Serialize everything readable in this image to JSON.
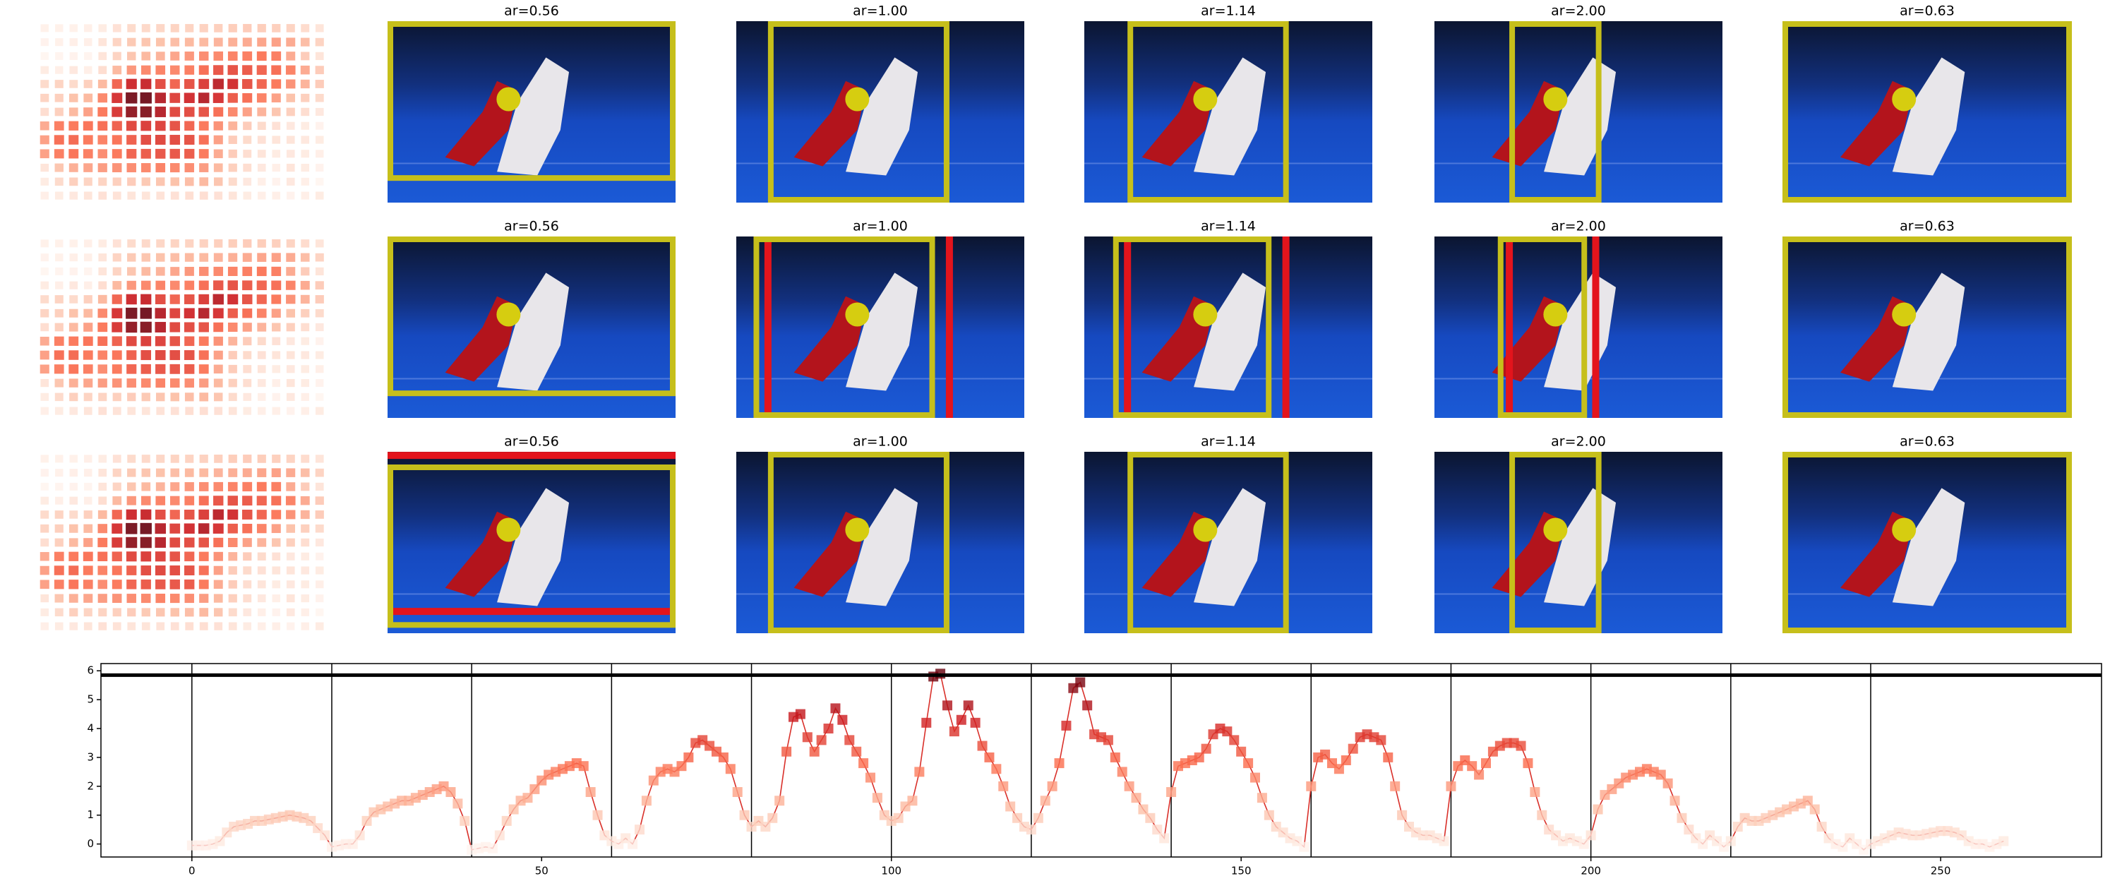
{
  "image_panels": {
    "titles": [
      [
        "ar=0.56",
        "ar=1.00",
        "ar=1.14",
        "ar=2.00",
        "ar=0.63"
      ],
      [
        "ar=0.56",
        "ar=1.00",
        "ar=1.14",
        "ar=2.00",
        "ar=0.63"
      ],
      [
        "ar=0.56",
        "ar=1.00",
        "ar=1.14",
        "ar=2.00",
        "ar=0.63"
      ]
    ]
  },
  "chart_data": {
    "type": "line",
    "color": "#d9302a",
    "colormap": "Reds",
    "xlim": [
      -13,
      273
    ],
    "ylim": [
      -0.45,
      6.25
    ],
    "xticks": [
      0,
      50,
      100,
      150,
      200,
      250
    ],
    "yticks": [
      0,
      1,
      2,
      3,
      4,
      5,
      6
    ],
    "vlines": [
      0,
      20,
      40,
      60,
      80,
      100,
      120,
      140,
      160,
      180,
      200,
      220,
      240
    ],
    "hline": 5.85,
    "values": [
      -0.05,
      -0.05,
      -0.05,
      0.0,
      0.1,
      0.4,
      0.6,
      0.65,
      0.7,
      0.8,
      0.8,
      0.85,
      0.9,
      0.95,
      1.0,
      0.95,
      0.9,
      0.8,
      0.55,
      0.3,
      -0.1,
      -0.05,
      0.0,
      0.0,
      0.3,
      0.8,
      1.1,
      1.2,
      1.3,
      1.4,
      1.5,
      1.5,
      1.6,
      1.7,
      1.8,
      1.9,
      2.0,
      1.8,
      1.4,
      0.8,
      -0.2,
      -0.15,
      -0.1,
      -0.15,
      0.3,
      0.8,
      1.2,
      1.5,
      1.6,
      1.9,
      2.2,
      2.4,
      2.5,
      2.6,
      2.7,
      2.8,
      2.7,
      1.8,
      1.0,
      0.3,
      0.1,
      0.0,
      0.2,
      0.0,
      0.5,
      1.5,
      2.2,
      2.5,
      2.6,
      2.5,
      2.7,
      3.0,
      3.5,
      3.6,
      3.4,
      3.2,
      3.0,
      2.6,
      1.8,
      1.0,
      0.6,
      0.8,
      0.6,
      0.9,
      1.5,
      3.2,
      4.4,
      4.5,
      3.7,
      3.2,
      3.6,
      4.0,
      4.7,
      4.3,
      3.6,
      3.2,
      2.8,
      2.3,
      1.6,
      1.0,
      0.8,
      0.9,
      1.3,
      1.5,
      2.5,
      4.2,
      5.8,
      5.9,
      4.8,
      3.9,
      4.3,
      4.8,
      4.2,
      3.4,
      3.0,
      2.6,
      2.0,
      1.3,
      0.9,
      0.6,
      0.5,
      0.9,
      1.5,
      2.0,
      2.8,
      4.1,
      5.4,
      5.6,
      4.8,
      3.8,
      3.7,
      3.6,
      3.0,
      2.5,
      2.0,
      1.6,
      1.2,
      0.9,
      0.5,
      0.2,
      1.8,
      2.7,
      2.8,
      2.9,
      3.0,
      3.3,
      3.8,
      4.0,
      3.9,
      3.6,
      3.2,
      2.8,
      2.3,
      1.6,
      1.0,
      0.6,
      0.4,
      0.2,
      0.1,
      -0.1,
      2.0,
      3.0,
      3.1,
      2.8,
      2.6,
      2.9,
      3.3,
      3.7,
      3.8,
      3.7,
      3.6,
      3.0,
      2.0,
      1.0,
      0.6,
      0.4,
      0.3,
      0.3,
      0.2,
      0.1,
      2.0,
      2.7,
      2.9,
      2.7,
      2.4,
      2.8,
      3.2,
      3.4,
      3.5,
      3.5,
      3.4,
      2.8,
      1.8,
      1.0,
      0.5,
      0.3,
      0.1,
      0.2,
      0.1,
      0.0,
      0.3,
      1.2,
      1.7,
      1.9,
      2.1,
      2.3,
      2.4,
      2.5,
      2.6,
      2.5,
      2.4,
      2.1,
      1.5,
      0.9,
      0.5,
      0.2,
      0.0,
      0.3,
      0.1,
      -0.1,
      0.1,
      0.6,
      0.9,
      0.8,
      0.8,
      0.9,
      1.0,
      1.1,
      1.2,
      1.3,
      1.4,
      1.5,
      1.2,
      0.6,
      0.2,
      0.0,
      -0.1,
      0.2,
      0.0,
      -0.2,
      0.0,
      0.1,
      0.2,
      0.3,
      0.4,
      0.35,
      0.3,
      0.3,
      0.35,
      0.4,
      0.45,
      0.45,
      0.4,
      0.3,
      0.1,
      0.0,
      0.0,
      -0.1,
      0.0,
      0.1
    ]
  }
}
